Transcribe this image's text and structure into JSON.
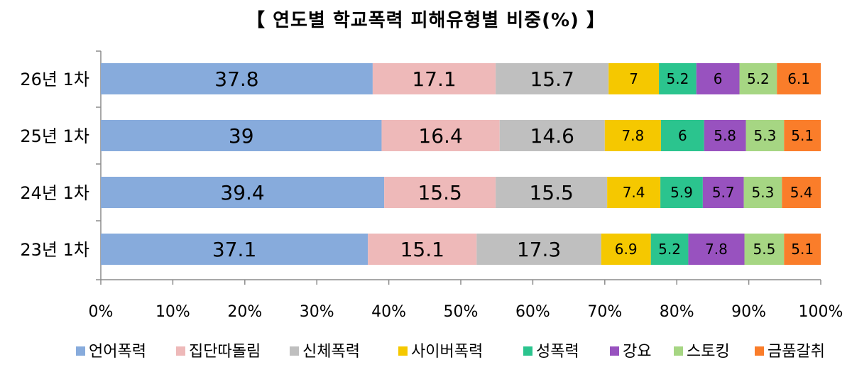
{
  "chart_data": {
    "type": "bar",
    "orientation": "horizontal",
    "stacked": "percent",
    "title": "【 연도별 학교폭력 피해유형별 비중(%) 】",
    "categories": [
      "26년 1차",
      "25년 1차",
      "24년 1차",
      "23년 1차"
    ],
    "xlim": [
      0,
      100
    ],
    "x_ticks": [
      "0%",
      "10%",
      "20%",
      "30%",
      "40%",
      "50%",
      "60%",
      "70%",
      "80%",
      "90%",
      "100%"
    ],
    "grid": false,
    "legend_position": "bottom",
    "series": [
      {
        "name": "언어폭력",
        "color": "#87ABDC",
        "values": [
          37.8,
          39,
          39.4,
          37.1
        ]
      },
      {
        "name": "집단따돌림",
        "color": "#EEB9B9",
        "values": [
          17.1,
          16.4,
          15.5,
          15.1
        ]
      },
      {
        "name": "신체폭력",
        "color": "#BFBFBF",
        "values": [
          15.7,
          14.6,
          15.5,
          17.3
        ]
      },
      {
        "name": "사이버폭력",
        "color": "#F5C800",
        "values": [
          7,
          7.8,
          7.4,
          6.9
        ]
      },
      {
        "name": "성폭력",
        "color": "#2BC48E",
        "values": [
          5.2,
          6,
          5.9,
          5.2
        ]
      },
      {
        "name": "강요",
        "color": "#9852BF",
        "values": [
          6,
          5.8,
          5.7,
          7.8
        ]
      },
      {
        "name": "스토킹",
        "color": "#A6D683",
        "values": [
          5.2,
          5.3,
          5.3,
          5.5
        ]
      },
      {
        "name": "금품갈취",
        "color": "#FA7D2A",
        "values": [
          6.1,
          5.1,
          5.4,
          5.1
        ]
      }
    ]
  }
}
